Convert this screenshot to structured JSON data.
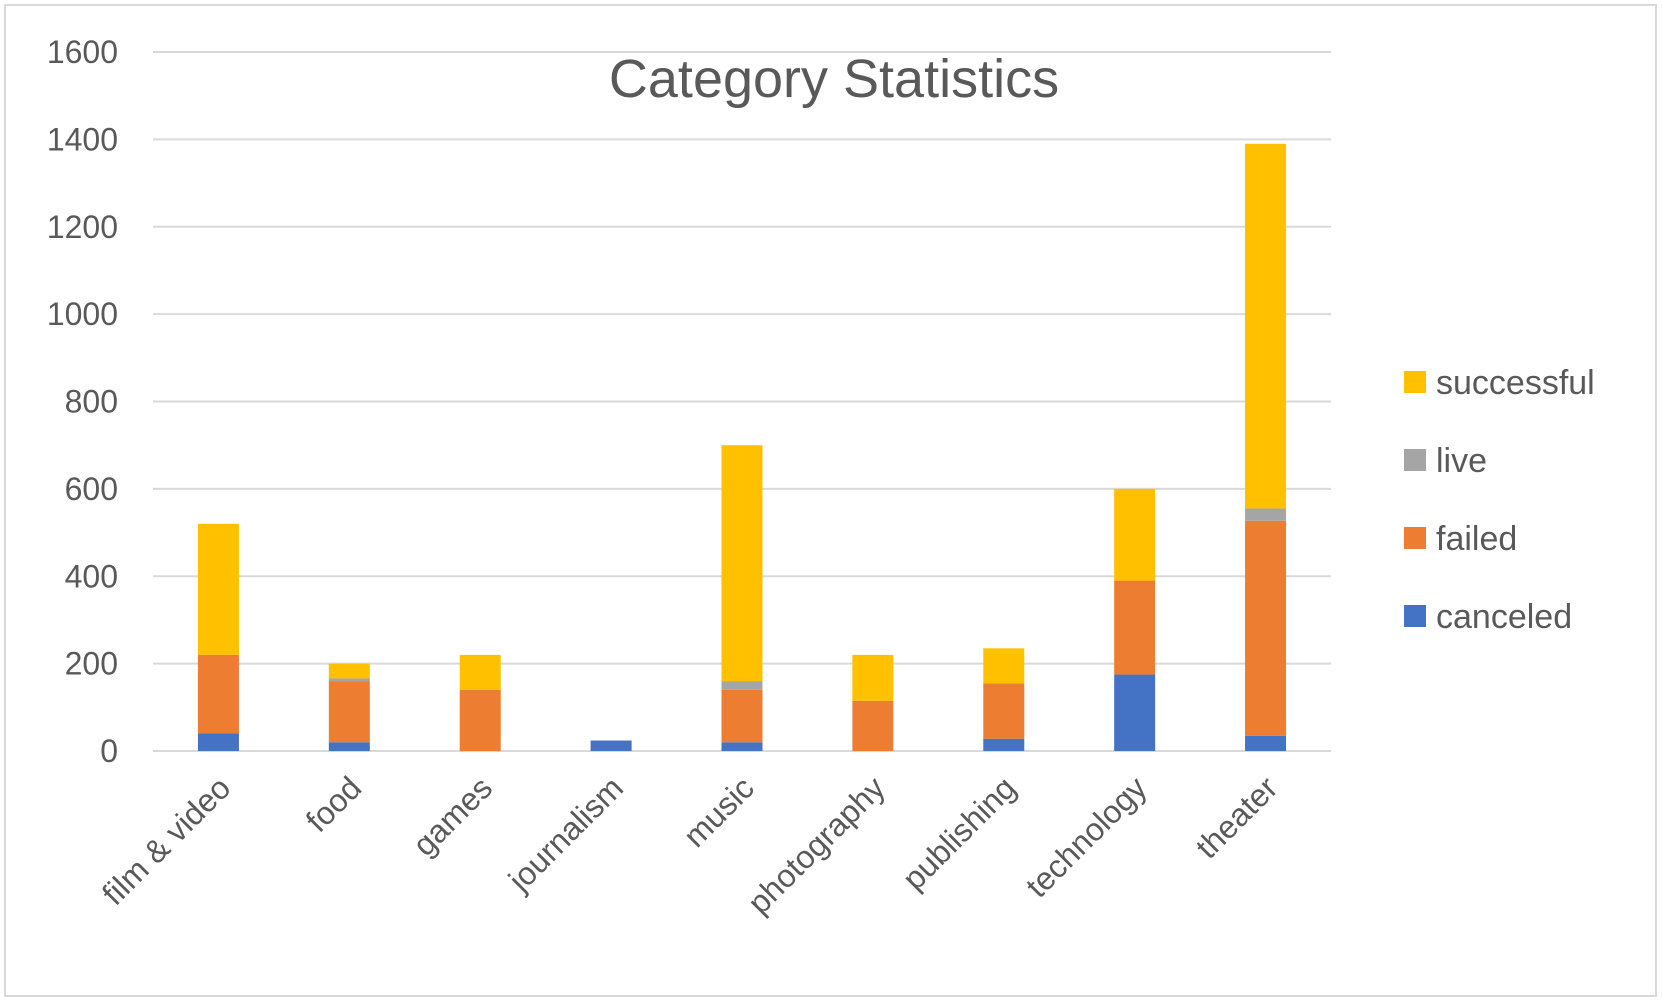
{
  "chart_data": {
    "type": "bar",
    "stacked": true,
    "title": "Category Statistics",
    "xlabel": "",
    "ylabel": "",
    "ylim": [
      0,
      1600
    ],
    "yticks": [
      0,
      200,
      400,
      600,
      800,
      1000,
      1200,
      1400,
      1600
    ],
    "grid": true,
    "legend_position": "right",
    "categories": [
      "film & video",
      "food",
      "games",
      "journalism",
      "music",
      "photography",
      "publishing",
      "technology",
      "theater"
    ],
    "series": [
      {
        "name": "canceled",
        "color": "#4472C4",
        "values": [
          40,
          20,
          0,
          24,
          20,
          0,
          28,
          175,
          35
        ]
      },
      {
        "name": "failed",
        "color": "#ED7D31",
        "values": [
          180,
          140,
          140,
          0,
          120,
          115,
          127,
          215,
          492
        ]
      },
      {
        "name": "live",
        "color": "#A5A5A5",
        "values": [
          0,
          6,
          0,
          0,
          20,
          0,
          0,
          0,
          28
        ]
      },
      {
        "name": "successful",
        "color": "#FFC000",
        "values": [
          300,
          34,
          80,
          0,
          540,
          105,
          80,
          210,
          835
        ]
      }
    ],
    "legend_order": [
      "successful",
      "live",
      "failed",
      "canceled"
    ]
  }
}
